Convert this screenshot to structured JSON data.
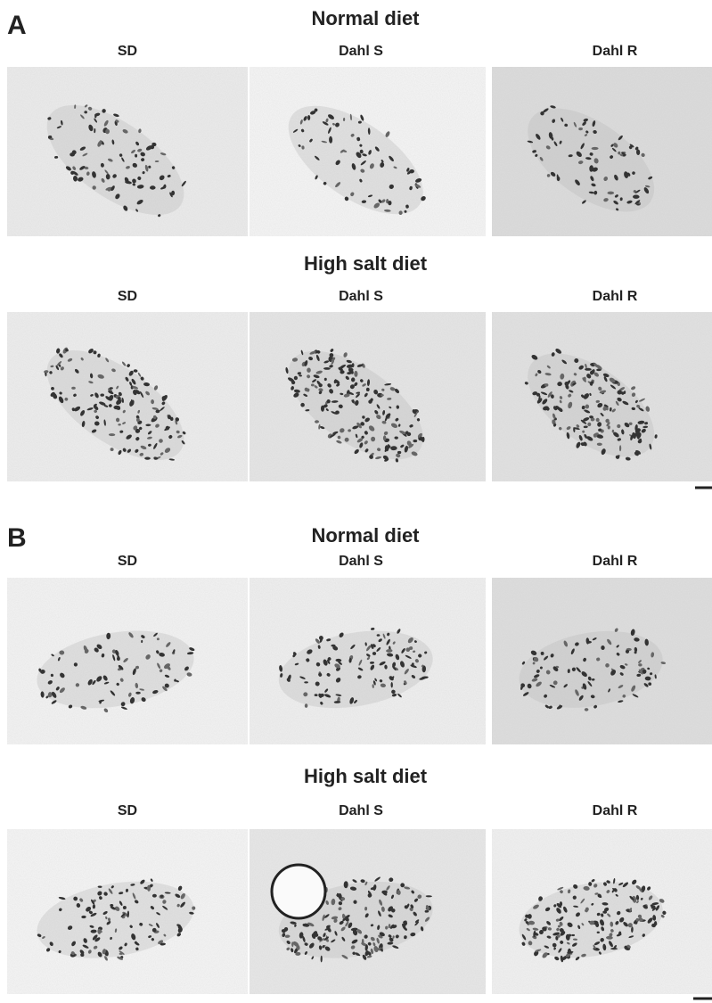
{
  "panels": [
    {
      "label": "A",
      "rows": [
        {
          "title": "Normal diet",
          "columns": [
            "SD",
            "Dahl S",
            "Dahl R"
          ]
        },
        {
          "title": "High salt diet",
          "columns": [
            "SD",
            "Dahl S",
            "Dahl R"
          ]
        }
      ]
    },
    {
      "label": "B",
      "rows": [
        {
          "title": "Normal diet",
          "columns": [
            "SD",
            "Dahl S",
            "Dahl R"
          ]
        },
        {
          "title": "High salt diet",
          "columns": [
            "SD",
            "Dahl S",
            "Dahl R"
          ]
        }
      ]
    }
  ]
}
